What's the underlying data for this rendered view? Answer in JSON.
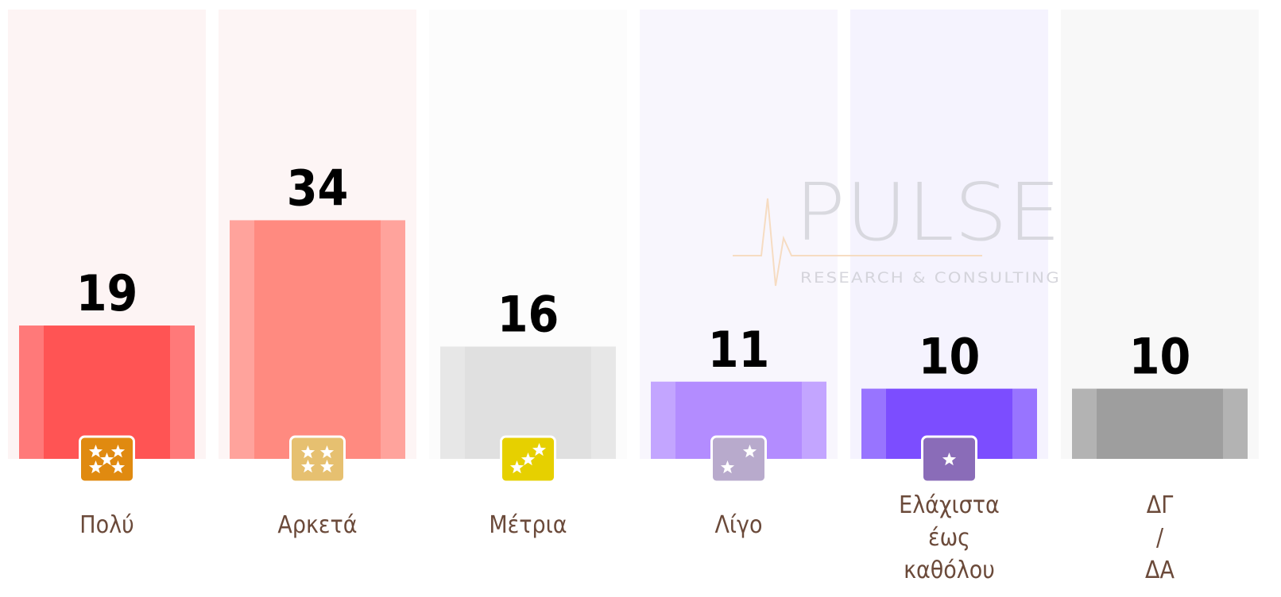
{
  "chart_data": {
    "type": "bar",
    "categories": [
      "Πολύ",
      "Αρκετά",
      "Μέτρια",
      "Λίγο",
      "Ελάχιστα έως καθόλου",
      "ΔΓ / ΔΑ"
    ],
    "values": [
      19,
      34,
      16,
      11,
      10,
      10
    ],
    "colors": [
      "#ff5454",
      "#ff8a80",
      "#e0e0e0",
      "#b38cff",
      "#7c4dff",
      "#9e9e9e"
    ],
    "column_colors": [
      "#fdf4f4",
      "#fdf5f5",
      "#fcfcfc",
      "#f8f6fd",
      "#f5f3fe",
      "#f8f8f8"
    ],
    "icons": [
      {
        "color": "#e08a10",
        "stars": 5
      },
      {
        "color": "#e6c070",
        "stars": 4
      },
      {
        "color": "#e6d000",
        "stars": 3
      },
      {
        "color": "#b8aacc",
        "stars": 2
      },
      {
        "color": "#8a6cb8",
        "stars": 1
      }
    ],
    "watermark": {
      "name": "PULSE",
      "tagline": "RESEARCH & CONSULTING"
    }
  }
}
